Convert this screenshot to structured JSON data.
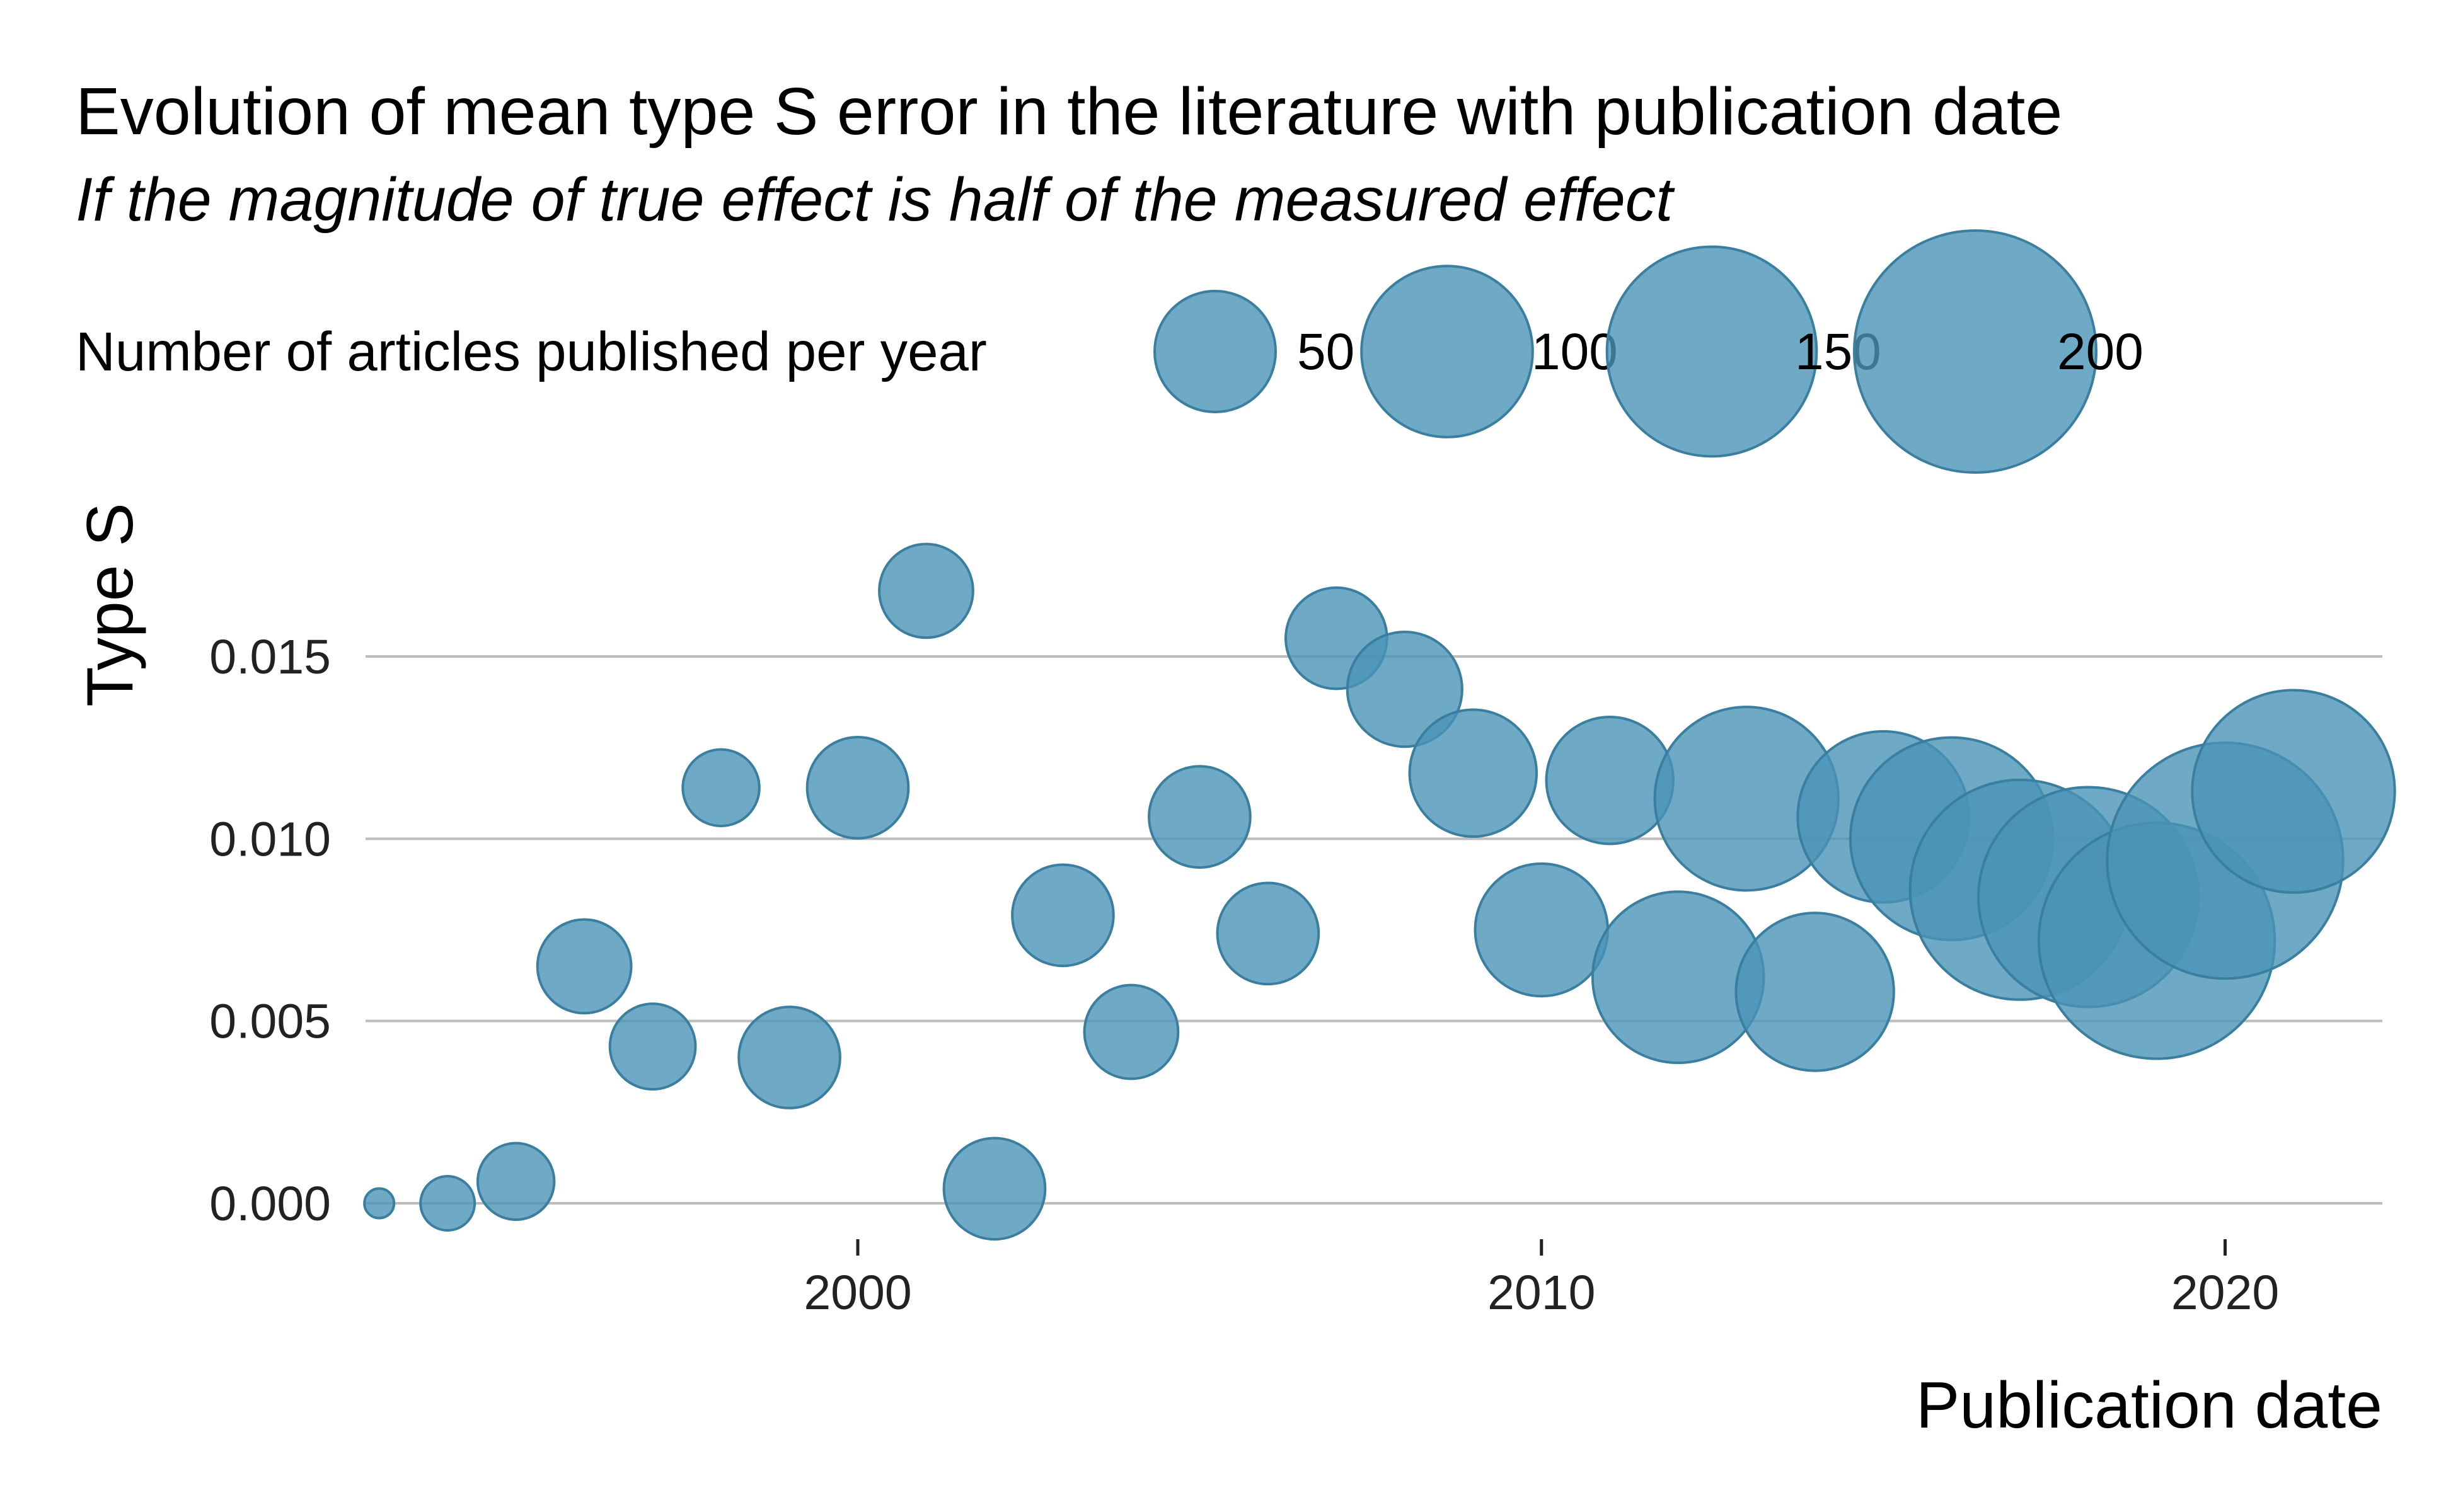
{
  "chart_data": {
    "type": "scatter",
    "title": "Evolution of mean type S error in the literature with publication date",
    "subtitle": "If the magnitude of true effect is half of the measured effect",
    "xlabel": "Publication date",
    "ylabel": "Type S",
    "xlim": [
      1992.8,
      2022.3
    ],
    "ylim": [
      0.0,
      0.0178
    ],
    "x_ticks": [
      2000,
      2010,
      2020
    ],
    "y_ticks": [
      "0.000",
      "0.005",
      "0.010",
      "0.015"
    ],
    "y_tick_values": [
      0.0,
      0.005,
      0.01,
      0.015
    ],
    "grid": "horizontal",
    "legend": {
      "title": "Number of articles published per year",
      "placement": "top",
      "sizes": [
        50,
        100,
        150,
        200
      ],
      "labels": [
        "50",
        "100",
        "150",
        "200"
      ]
    },
    "point_color": "#4a93b6",
    "points": [
      {
        "x": 1993,
        "y": 0.0,
        "n": 3
      },
      {
        "x": 1994,
        "y": 0.0,
        "n": 10
      },
      {
        "x": 1995,
        "y": 0.0006,
        "n": 20
      },
      {
        "x": 1996,
        "y": 0.0065,
        "n": 30
      },
      {
        "x": 1997,
        "y": 0.0043,
        "n": 25
      },
      {
        "x": 1998,
        "y": 0.0114,
        "n": 20
      },
      {
        "x": 1999,
        "y": 0.004,
        "n": 35
      },
      {
        "x": 2000,
        "y": 0.0114,
        "n": 35
      },
      {
        "x": 2001,
        "y": 0.0168,
        "n": 30
      },
      {
        "x": 2002,
        "y": 0.0004,
        "n": 35
      },
      {
        "x": 2003,
        "y": 0.0079,
        "n": 35
      },
      {
        "x": 2004,
        "y": 0.0047,
        "n": 30
      },
      {
        "x": 2005,
        "y": 0.0106,
        "n": 35
      },
      {
        "x": 2006,
        "y": 0.0074,
        "n": 35
      },
      {
        "x": 2007,
        "y": 0.0155,
        "n": 35
      },
      {
        "x": 2008,
        "y": 0.0141,
        "n": 45
      },
      {
        "x": 2009,
        "y": 0.0118,
        "n": 55
      },
      {
        "x": 2010,
        "y": 0.0075,
        "n": 60
      },
      {
        "x": 2011,
        "y": 0.0116,
        "n": 55
      },
      {
        "x": 2012,
        "y": 0.0062,
        "n": 100
      },
      {
        "x": 2013,
        "y": 0.0111,
        "n": 115
      },
      {
        "x": 2014,
        "y": 0.0058,
        "n": 85
      },
      {
        "x": 2015,
        "y": 0.0106,
        "n": 100
      },
      {
        "x": 2016,
        "y": 0.01,
        "n": 140
      },
      {
        "x": 2017,
        "y": 0.0086,
        "n": 165
      },
      {
        "x": 2018,
        "y": 0.0084,
        "n": 165
      },
      {
        "x": 2019,
        "y": 0.0072,
        "n": 190
      },
      {
        "x": 2020,
        "y": 0.0094,
        "n": 190
      },
      {
        "x": 2021,
        "y": 0.0113,
        "n": 140
      }
    ]
  }
}
